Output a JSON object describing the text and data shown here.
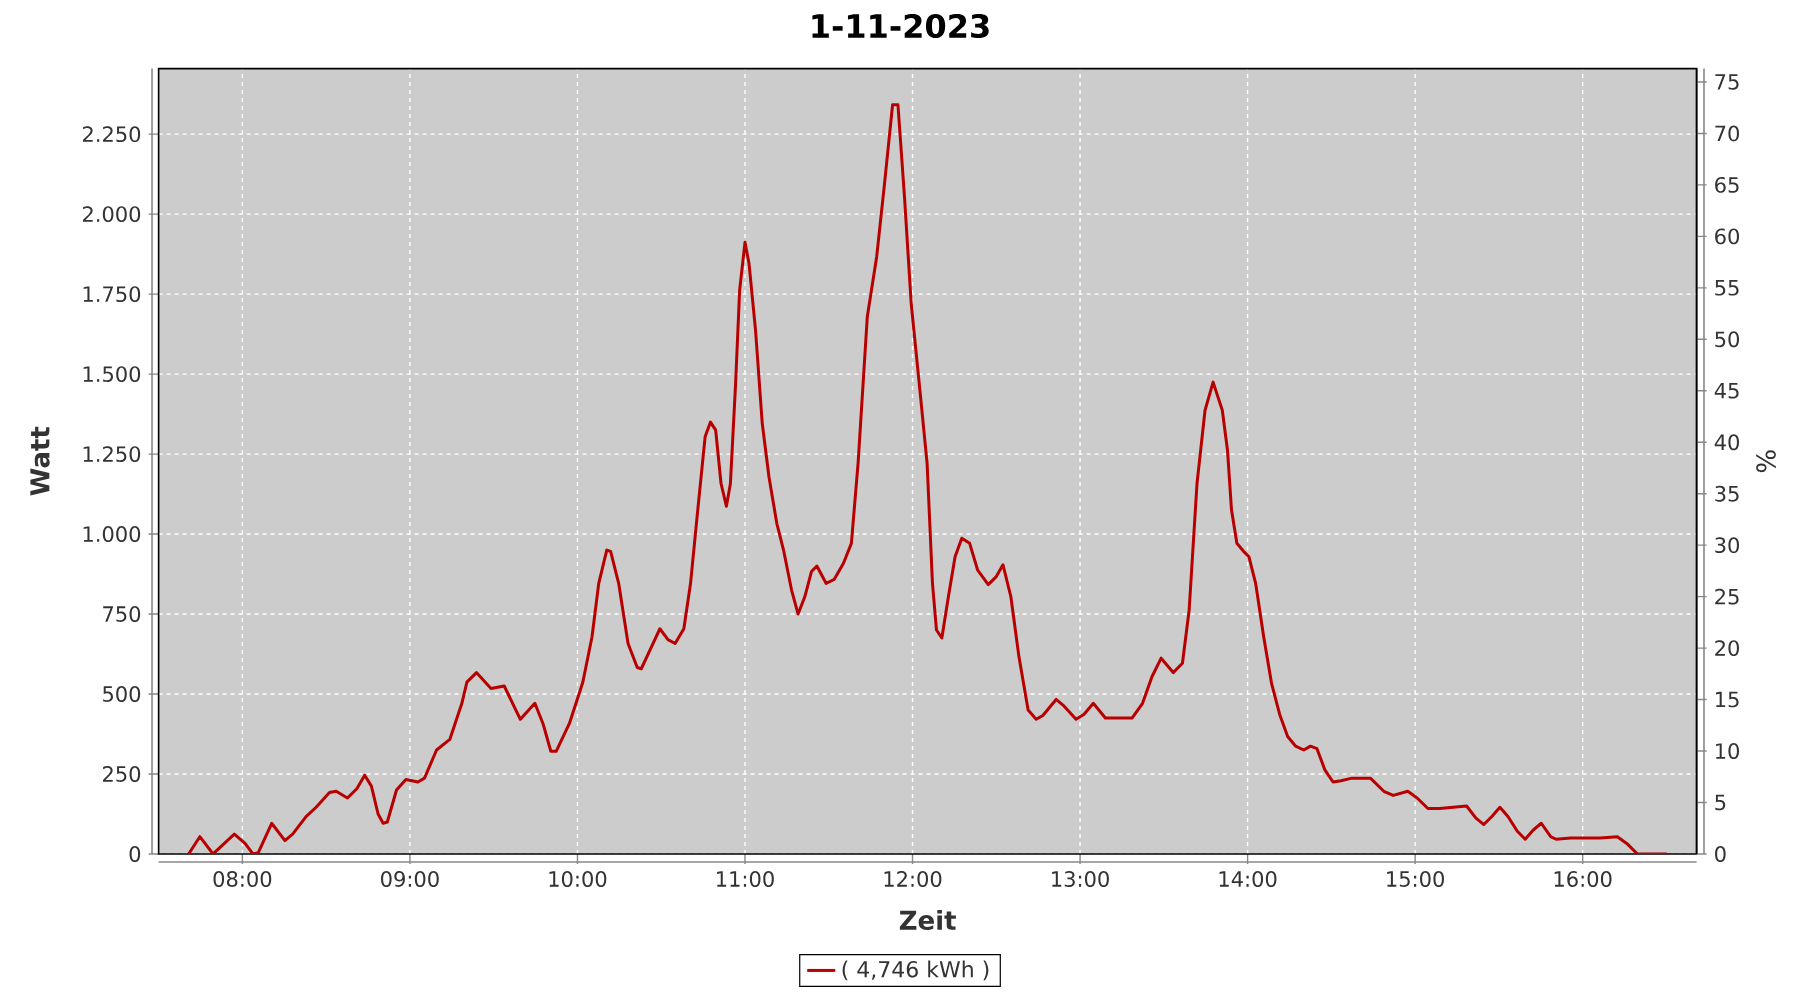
{
  "chart_data": {
    "type": "line",
    "title": "1-11-2023",
    "xlabel": "Zeit",
    "ylabel": "Watt",
    "y2label": "%",
    "x": [
      7.679,
      7.746,
      7.825,
      7.952,
      8.016,
      8.063,
      8.095,
      8.175,
      8.254,
      8.3,
      8.38,
      8.44,
      8.52,
      8.56,
      8.627,
      8.683,
      8.73,
      8.77,
      8.81,
      8.84,
      8.865,
      8.92,
      8.976,
      9.048,
      9.087,
      9.159,
      9.238,
      9.31,
      9.34,
      9.397,
      9.484,
      9.563,
      9.659,
      9.746,
      9.794,
      9.841,
      9.873,
      9.952,
      10.032,
      10.087,
      10.127,
      10.175,
      10.198,
      10.246,
      10.302,
      10.357,
      10.381,
      10.437,
      10.492,
      10.54,
      10.583,
      10.635,
      10.675,
      10.714,
      10.762,
      10.794,
      10.825,
      10.857,
      10.889,
      10.913,
      10.944,
      10.968,
      11.0,
      11.024,
      11.063,
      11.103,
      11.143,
      11.19,
      11.23,
      11.278,
      11.317,
      11.357,
      11.397,
      11.429,
      11.484,
      11.532,
      11.587,
      11.635,
      11.675,
      11.73,
      11.786,
      11.833,
      11.881,
      11.913,
      11.952,
      11.992,
      12.048,
      12.087,
      12.119,
      12.143,
      12.175,
      12.214,
      12.254,
      12.294,
      12.341,
      12.389,
      12.452,
      12.5,
      12.54,
      12.587,
      12.635,
      12.69,
      12.738,
      12.778,
      12.857,
      12.905,
      12.976,
      13.024,
      13.079,
      13.151,
      13.31,
      13.373,
      13.429,
      13.484,
      13.556,
      13.611,
      13.651,
      13.698,
      13.746,
      13.794,
      13.849,
      13.88,
      13.904,
      13.936,
      13.976,
      14.008,
      14.048,
      14.096,
      14.143,
      14.191,
      14.239,
      14.287,
      14.335,
      14.375,
      14.414,
      14.462,
      14.51,
      14.558,
      14.622,
      14.733,
      14.813,
      14.869,
      14.956,
      15.012,
      15.076,
      15.147,
      15.227,
      15.307,
      15.363,
      15.41,
      15.458,
      15.506,
      15.554,
      15.61,
      15.657,
      15.705,
      15.753,
      15.809,
      15.841,
      15.928,
      16.104,
      16.207,
      16.263,
      16.327,
      16.502
    ],
    "series": [
      {
        "name": "( 4,746 kWh )",
        "color": "#b80000",
        "values": [
          0,
          54,
          0,
          62,
          33,
          0,
          4,
          96,
          42,
          62,
          117,
          146,
          192,
          196,
          175,
          204,
          246,
          212,
          125,
          96,
          100,
          200,
          233,
          225,
          237,
          325,
          358,
          471,
          537,
          567,
          517,
          525,
          421,
          471,
          408,
          321,
          321,
          408,
          537,
          679,
          846,
          950,
          946,
          846,
          658,
          583,
          579,
          642,
          704,
          670,
          658,
          704,
          846,
          1054,
          1304,
          1350,
          1325,
          1158,
          1087,
          1158,
          1471,
          1762,
          1912,
          1846,
          1637,
          1346,
          1179,
          1033,
          950,
          825,
          750,
          804,
          883,
          900,
          846,
          858,
          908,
          971,
          1221,
          1679,
          1867,
          2096,
          2342,
          2342,
          2054,
          1721,
          1429,
          1221,
          846,
          700,
          675,
          804,
          929,
          987,
          971,
          887,
          842,
          867,
          904,
          804,
          617,
          450,
          421,
          433,
          483,
          462,
          421,
          437,
          471,
          425,
          425,
          471,
          554,
          612,
          567,
          596,
          762,
          1158,
          1387,
          1475,
          1387,
          1262,
          1075,
          971,
          946,
          929,
          846,
          679,
          533,
          437,
          367,
          337,
          325,
          337,
          329,
          262,
          225,
          229,
          237,
          237,
          196,
          183,
          196,
          175,
          142,
          142,
          146,
          150,
          112,
          92,
          117,
          146,
          117,
          71,
          46,
          75,
          96,
          54,
          46,
          50,
          50,
          54,
          33,
          0,
          0
        ]
      }
    ],
    "xlim": [
      7.5,
      16.68
    ],
    "xticks": [
      {
        "value": 8,
        "label": "08:00"
      },
      {
        "value": 9,
        "label": "09:00"
      },
      {
        "value": 10,
        "label": "10:00"
      },
      {
        "value": 11,
        "label": "11:00"
      },
      {
        "value": 12,
        "label": "12:00"
      },
      {
        "value": 13,
        "label": "13:00"
      },
      {
        "value": 14,
        "label": "14:00"
      },
      {
        "value": 15,
        "label": "15:00"
      },
      {
        "value": 16,
        "label": "16:00"
      }
    ],
    "ylim": [
      0,
      2455
    ],
    "yticks": [
      0,
      250,
      500,
      750,
      {
        "value": 1000,
        "label": "1.000"
      },
      {
        "value": 1250,
        "label": "1.250"
      },
      {
        "value": 1500,
        "label": "1.500"
      },
      {
        "value": 1750,
        "label": "1.750"
      },
      {
        "value": 2000,
        "label": "2.000"
      },
      {
        "value": 2250,
        "label": "2.250"
      }
    ],
    "y2lim": [
      0,
      76.3
    ],
    "y2ticks": [
      0,
      5,
      10,
      15,
      20,
      25,
      30,
      35,
      40,
      45,
      50,
      55,
      60,
      65,
      70,
      75
    ],
    "grid": true,
    "legend": "bottom"
  }
}
